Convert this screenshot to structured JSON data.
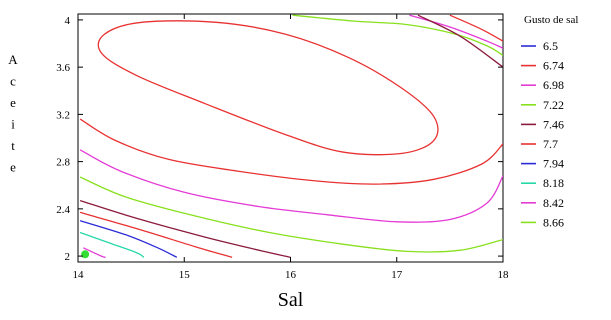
{
  "chart_data": {
    "type": "contour",
    "xlabel": "Sal",
    "ylabel": "Aceite",
    "xlim": [
      14,
      18
    ],
    "ylim": [
      1.95,
      4.05
    ],
    "x_ticks": [
      14,
      15,
      16,
      17,
      18
    ],
    "x_tick_labels": [
      "14",
      "15",
      "16",
      "17",
      "18"
    ],
    "y_ticks": [
      2,
      2.4,
      2.8,
      3.2,
      3.6,
      4
    ],
    "y_tick_labels": [
      "2",
      "2.4",
      "2.8",
      "3.2",
      "3.6",
      "4"
    ],
    "legend": {
      "title": "Gusto de sal",
      "position": "right",
      "entries": [
        {
          "label": "6.5",
          "color": "#2b2bd6"
        },
        {
          "label": "6.74",
          "color": "#e83232"
        },
        {
          "label": "6.98",
          "color": "#e43ad6"
        },
        {
          "label": "7.22",
          "color": "#88e01e"
        },
        {
          "label": "7.46",
          "color": "#8b1b3c"
        },
        {
          "label": "7.7",
          "color": "#e83232"
        },
        {
          "label": "7.94",
          "color": "#2b2bd6"
        },
        {
          "label": "8.18",
          "color": "#27d8a8"
        },
        {
          "label": "8.42",
          "color": "#e43ad6"
        },
        {
          "label": "8.66",
          "color": "#88e01e"
        }
      ]
    },
    "contours": [
      {
        "color": "#e83232",
        "closed": true,
        "points": [
          [
            14.6,
            3.98
          ],
          [
            15.3,
            3.98
          ],
          [
            15.95,
            3.88
          ],
          [
            16.55,
            3.68
          ],
          [
            17.05,
            3.42
          ],
          [
            17.35,
            3.18
          ],
          [
            17.35,
            2.98
          ],
          [
            17.05,
            2.87
          ],
          [
            16.5,
            2.88
          ],
          [
            15.95,
            3.03
          ],
          [
            15.2,
            3.29
          ],
          [
            14.55,
            3.53
          ],
          [
            14.22,
            3.72
          ],
          [
            14.25,
            3.88
          ]
        ]
      },
      {
        "color": "#e83232",
        "closed": false,
        "points": [
          [
            14.02,
            3.16
          ],
          [
            14.35,
            2.98
          ],
          [
            14.85,
            2.82
          ],
          [
            15.5,
            2.72
          ],
          [
            16.2,
            2.64
          ],
          [
            16.8,
            2.61
          ],
          [
            17.35,
            2.65
          ],
          [
            17.8,
            2.78
          ],
          [
            18.0,
            2.95
          ]
        ]
      },
      {
        "color": "#e43ad6",
        "closed": false,
        "points": [
          [
            14.02,
            2.9
          ],
          [
            14.4,
            2.72
          ],
          [
            15.0,
            2.54
          ],
          [
            15.7,
            2.42
          ],
          [
            16.35,
            2.35
          ],
          [
            17.0,
            2.29
          ],
          [
            17.5,
            2.31
          ],
          [
            17.85,
            2.45
          ],
          [
            18.0,
            2.68
          ]
        ]
      },
      {
        "color": "#88e01e",
        "closed": false,
        "points": [
          [
            14.02,
            2.67
          ],
          [
            14.45,
            2.5
          ],
          [
            15.1,
            2.34
          ],
          [
            15.8,
            2.2
          ],
          [
            16.5,
            2.1
          ],
          [
            17.1,
            2.04
          ],
          [
            17.6,
            2.05
          ],
          [
            18.0,
            2.14
          ]
        ]
      },
      {
        "color": "#8b1b3c",
        "closed": false,
        "points": [
          [
            14.02,
            2.47
          ],
          [
            14.55,
            2.32
          ],
          [
            15.2,
            2.16
          ],
          [
            15.75,
            2.04
          ],
          [
            16.0,
            1.99
          ]
        ]
      },
      {
        "color": "#e83232",
        "closed": false,
        "points": [
          [
            14.02,
            2.37
          ],
          [
            14.6,
            2.22
          ],
          [
            15.1,
            2.08
          ],
          [
            15.45,
            1.99
          ]
        ]
      },
      {
        "color": "#2b2bd6",
        "closed": false,
        "points": [
          [
            14.02,
            2.3
          ],
          [
            14.45,
            2.18
          ],
          [
            14.75,
            2.07
          ],
          [
            14.93,
            1.99
          ]
        ]
      },
      {
        "color": "#27d8a8",
        "closed": false,
        "points": [
          [
            14.02,
            2.2
          ],
          [
            14.3,
            2.11
          ],
          [
            14.55,
            2.03
          ],
          [
            14.62,
            1.99
          ]
        ]
      },
      {
        "color": "#e43ad6",
        "closed": false,
        "points": [
          [
            14.05,
            2.07
          ],
          [
            14.22,
            2.0
          ],
          [
            14.26,
            1.99
          ]
        ]
      },
      {
        "color": "#88e01e",
        "closed": false,
        "points": [
          [
            16.02,
            4.04
          ],
          [
            16.6,
            3.99
          ],
          [
            17.1,
            3.96
          ],
          [
            17.55,
            3.88
          ],
          [
            17.85,
            3.78
          ],
          [
            18.0,
            3.7
          ]
        ]
      },
      {
        "color": "#e43ad6",
        "closed": false,
        "points": [
          [
            17.12,
            4.04
          ],
          [
            17.5,
            3.94
          ],
          [
            17.85,
            3.82
          ],
          [
            18.0,
            3.76
          ]
        ]
      },
      {
        "color": "#8b1b3c",
        "closed": false,
        "points": [
          [
            17.2,
            4.04
          ],
          [
            17.6,
            3.86
          ],
          [
            18.0,
            3.6
          ]
        ]
      },
      {
        "color": "#e83232",
        "closed": false,
        "points": [
          [
            17.5,
            4.04
          ],
          [
            17.8,
            3.92
          ],
          [
            18.0,
            3.82
          ]
        ]
      }
    ],
    "markers": [
      {
        "x": 14.02,
        "y": 1.99,
        "color": "#33dd33"
      }
    ]
  }
}
